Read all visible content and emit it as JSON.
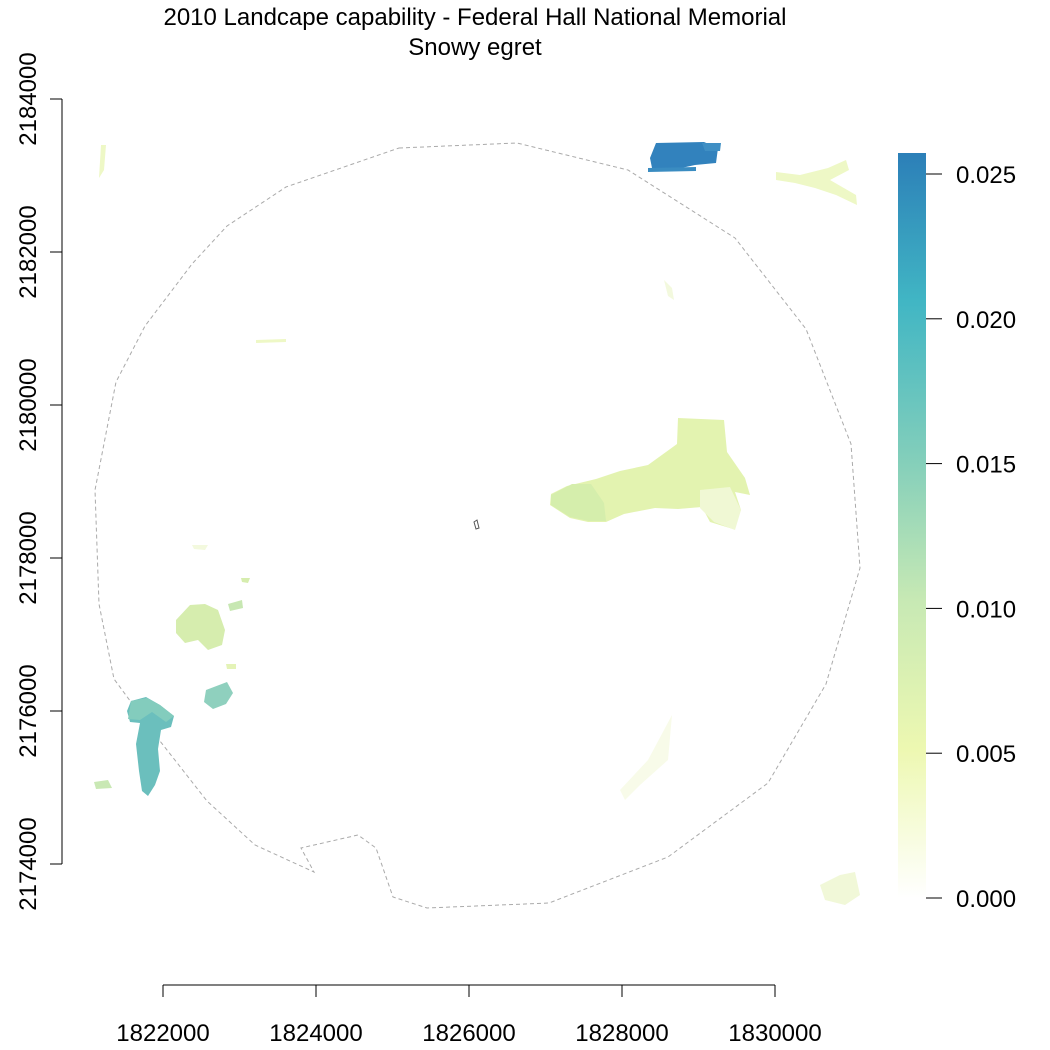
{
  "title": {
    "line1": "2010 Landcape capability - Federal Hall National Memorial",
    "line2": "Snowy egret"
  },
  "x_axis": {
    "ticks": [
      1822000,
      1824000,
      1826000,
      1828000,
      1830000
    ],
    "labels": [
      "1822000",
      "1824000",
      "1826000",
      "1828000",
      "1830000"
    ]
  },
  "y_axis": {
    "ticks": [
      2174000,
      2176000,
      2178000,
      2180000,
      2182000,
      2184000
    ],
    "labels": [
      "2174000",
      "2176000",
      "2178000",
      "2180000",
      "2182000",
      "2184000"
    ]
  },
  "legend": {
    "ticks": [
      0.0,
      0.005,
      0.01,
      0.015,
      0.02,
      0.025
    ],
    "labels": [
      "0.000",
      "0.005",
      "0.010",
      "0.015",
      "0.020",
      "0.025"
    ],
    "colors": [
      "#ffffff",
      "#edf8b1",
      "#c7e9b4",
      "#7fcdbb",
      "#41b6c4",
      "#2c7fb8"
    ]
  },
  "boundary_style": {
    "color": "#aaaaaa",
    "dash": "dashed"
  }
}
